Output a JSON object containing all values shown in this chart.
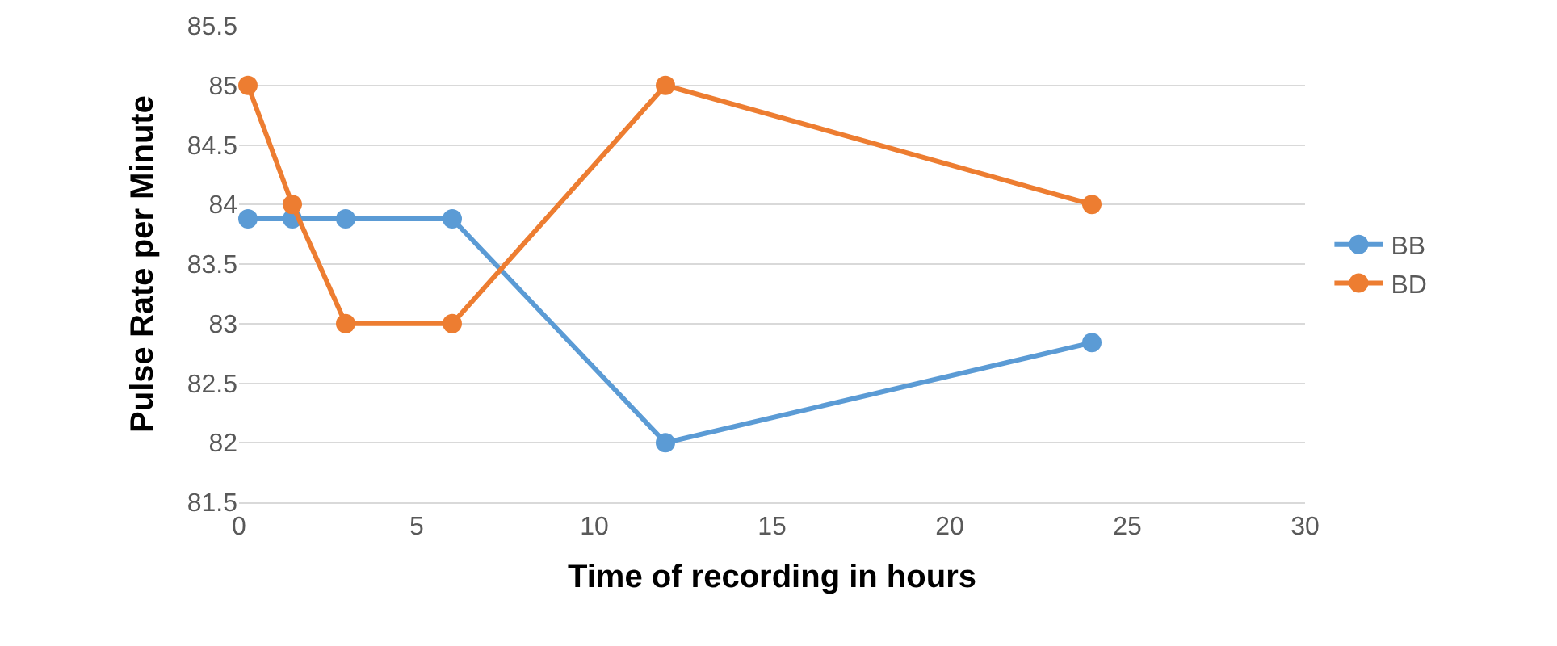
{
  "chart_data": {
    "type": "line",
    "xlabel": "Time of recording in hours",
    "ylabel": "Pulse Rate per Minute",
    "x": [
      0.25,
      1.5,
      3,
      6,
      12,
      24
    ],
    "series": [
      {
        "name": "BB",
        "color": "#5b9bd5",
        "values": [
          83.88,
          83.88,
          83.88,
          83.88,
          82,
          82.84
        ]
      },
      {
        "name": "BD",
        "color": "#ed7d31",
        "values": [
          85,
          84,
          83,
          83,
          85,
          84
        ]
      }
    ],
    "xlim": [
      0,
      30
    ],
    "xticks": [
      0,
      5,
      10,
      15,
      20,
      25,
      30
    ],
    "ylim": [
      81.5,
      85.5
    ],
    "yticks": [
      81.5,
      82,
      82.5,
      83,
      83.5,
      84,
      84.5,
      85,
      85.5
    ],
    "grid": "y",
    "legend": "right",
    "marker": "circle",
    "line_style": "solid"
  }
}
